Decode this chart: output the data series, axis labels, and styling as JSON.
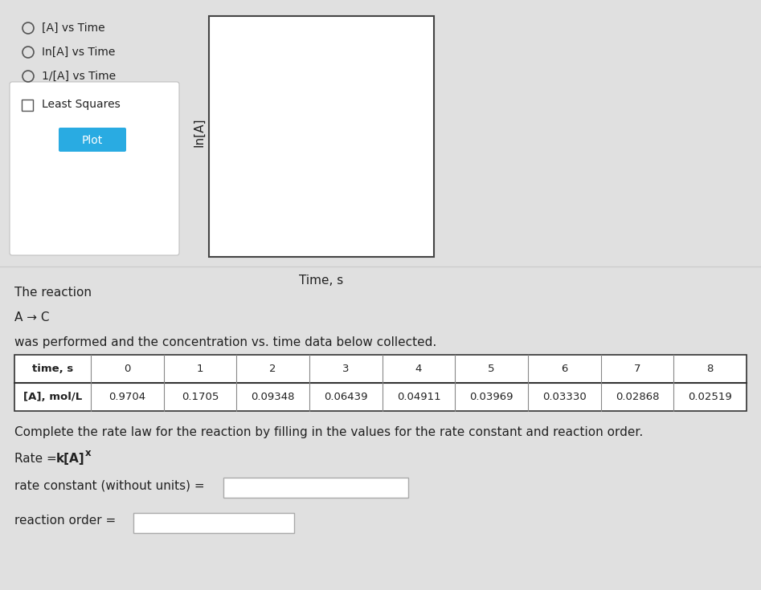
{
  "bg_color": "#e0e0e0",
  "top_panel_bg": "#e0e0e0",
  "bottom_panel_bg": "#ffffff",
  "radio_options": [
    "[A] vs Time",
    "In[A] vs Time",
    "1/[A] vs Time"
  ],
  "checkbox_option": "Least Squares",
  "button_label": "Plot",
  "button_color": "#29abe2",
  "button_text_color": "#ffffff",
  "plot_ylabel": "In[A]",
  "plot_xlabel": "Time, s",
  "reaction_text": "The reaction",
  "reaction_equation": "A → C",
  "description": "was performed and the concentration vs. time data below collected.",
  "time_header": "time, s",
  "conc_header": "[A], mol/L",
  "time_values": [
    0,
    1,
    2,
    3,
    4,
    5,
    6,
    7,
    8
  ],
  "conc_values": [
    "0.9704",
    "0.1705",
    "0.09348",
    "0.06439",
    "0.04911",
    "0.03969",
    "0.03330",
    "0.02868",
    "0.02519"
  ],
  "complete_text": "Complete the rate law for the reaction by filling in the values for the rate constant and reaction order.",
  "rate_constant_label": "rate constant (without units) =",
  "reaction_order_label": "reaction order ="
}
